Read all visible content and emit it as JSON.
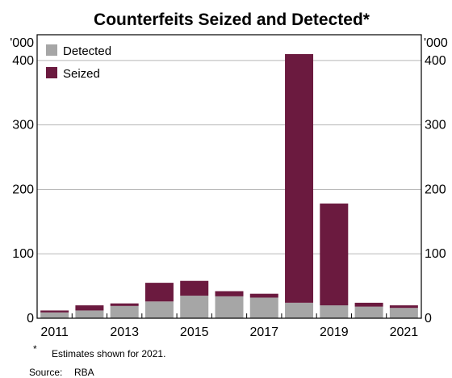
{
  "chart_data": {
    "type": "bar",
    "stacked": true,
    "title": "Counterfeits Seized and Detected*",
    "unit_left": "'000",
    "unit_right": "'000",
    "x": [
      2011,
      2012,
      2013,
      2014,
      2015,
      2016,
      2017,
      2018,
      2019,
      2020,
      2021
    ],
    "x_tick_labels": [
      "2011",
      "2013",
      "2015",
      "2017",
      "2019",
      "2021"
    ],
    "y_ticks": [
      "0",
      "100",
      "200",
      "300",
      "400"
    ],
    "ylim": [
      0,
      440
    ],
    "grid": true,
    "legend_position": "top-left",
    "series": [
      {
        "name": "Detected",
        "color": "#a6a6a6",
        "values": [
          9,
          12,
          19,
          26,
          35,
          34,
          32,
          24,
          20,
          18,
          16
        ]
      },
      {
        "name": "Seized",
        "color": "#6b1a3f",
        "values": [
          3,
          8,
          4,
          29,
          23,
          8,
          6,
          386,
          158,
          6,
          4
        ]
      }
    ],
    "footnote_marker": "*",
    "footnote_text": "Estimates shown for 2021.",
    "source_label": "Source:",
    "source_value": "RBA"
  }
}
